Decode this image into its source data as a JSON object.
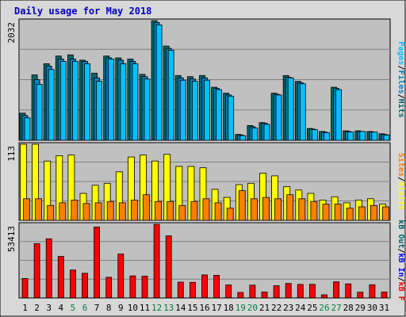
{
  "colors": {
    "frame_bg": "#d8d8d8",
    "panel_bg": "#c0c0c0",
    "grid": "#808080",
    "title": "#0000c0",
    "hits": "#006666",
    "files": "#0080c0",
    "pages": "#00c0ff",
    "visits": "#ffff00",
    "sites": "#ff8000",
    "kbf": "#ff0000",
    "kbin": "#0000ff",
    "kbout": "#006666",
    "weekend": "#008040",
    "weekday": "#000000"
  },
  "chart_data": {
    "type": "bar",
    "title": "Daily usage for May 2018",
    "categories": [
      "1",
      "2",
      "3",
      "4",
      "5",
      "6",
      "7",
      "8",
      "9",
      "10",
      "11",
      "12",
      "13",
      "14",
      "15",
      "16",
      "17",
      "18",
      "19",
      "20",
      "21",
      "22",
      "23",
      "24",
      "25",
      "26",
      "27",
      "28",
      "29",
      "30",
      "31"
    ],
    "weekend_days": [
      "5",
      "6",
      "12",
      "13",
      "19",
      "20",
      "26",
      "27"
    ],
    "panels": [
      {
        "max_label": "2032",
        "ymax": 2032,
        "legend": [
          {
            "text": "Hits",
            "color": "#006666"
          },
          {
            "text": "Files",
            "color": "#0080c0"
          },
          {
            "text": "Pages",
            "color": "#00c0ff"
          }
        ],
        "series": [
          {
            "name": "Hits",
            "values": [
              460,
              1110,
              1300,
              1430,
              1450,
              1360,
              1140,
              1430,
              1400,
              1380,
              1120,
              2030,
              1600,
              1100,
              1080,
              1100,
              900,
              800,
              100,
              250,
              300,
              800,
              1100,
              1000,
              200,
              150,
              900,
              160,
              160,
              150,
              110
            ],
            "color": "#006666"
          },
          {
            "name": "Files",
            "values": [
              420,
              1030,
              1260,
              1380,
              1380,
              1340,
              1060,
              1400,
              1360,
              1340,
              1080,
              2000,
              1560,
              1060,
              1040,
              1060,
              880,
              770,
              90,
              230,
              290,
              780,
              1070,
              980,
              190,
              140,
              880,
              150,
              150,
              140,
              100
            ],
            "color": "#0080c0"
          },
          {
            "name": "Pages",
            "values": [
              380,
              950,
              1200,
              1340,
              1340,
              1300,
              1000,
              1380,
              1300,
              1300,
              1040,
              1960,
              1530,
              1020,
              1000,
              1020,
              860,
              750,
              80,
              210,
              270,
              770,
              1060,
              960,
              180,
              130,
              860,
              140,
              150,
              140,
              90
            ],
            "color": "#00c0ff"
          }
        ]
      },
      {
        "max_label": "113",
        "ymax": 113,
        "legend": [
          {
            "text": "Visits",
            "color": "#ffff00"
          },
          {
            "text": "Sites",
            "color": "#ff8000"
          }
        ],
        "series": [
          {
            "name": "Visits",
            "values": [
              113,
              113,
              88,
              96,
              97,
              40,
              52,
              55,
              72,
              94,
              97,
              88,
              98,
              80,
              80,
              78,
              46,
              34,
              53,
              55,
              70,
              66,
              50,
              45,
              40,
              30,
              35,
              26,
              30,
              32,
              24
            ],
            "color": "#ffff00"
          },
          {
            "name": "Sites",
            "values": [
              32,
              32,
              22,
              26,
              30,
              25,
              26,
              28,
              26,
              30,
              38,
              28,
              28,
              22,
              28,
              32,
              26,
              18,
              44,
              32,
              34,
              32,
              38,
              32,
              28,
              24,
              24,
              18,
              20,
              22,
              20
            ],
            "color": "#ff8000"
          }
        ]
      },
      {
        "max_label": "53413",
        "ymax": 53413,
        "legend": [
          {
            "text": "kB F",
            "color": "#ff0000"
          },
          {
            "text": "kB In",
            "color": "#0000ff"
          },
          {
            "text": "kB Out",
            "color": "#006666"
          }
        ],
        "series": [
          {
            "name": "kB F",
            "values": [
              14100,
              39400,
              42900,
              30100,
              20300,
              17900,
              51400,
              15000,
              31800,
              16000,
              15800,
              53400,
              45000,
              11500,
              11300,
              16700,
              16400,
              9400,
              4000,
              9300,
              4300,
              8900,
              10500,
              9800,
              9900,
              2300,
              11700,
              10200,
              4200,
              9600,
              4300
            ],
            "color": "#ff0000"
          }
        ]
      }
    ]
  }
}
